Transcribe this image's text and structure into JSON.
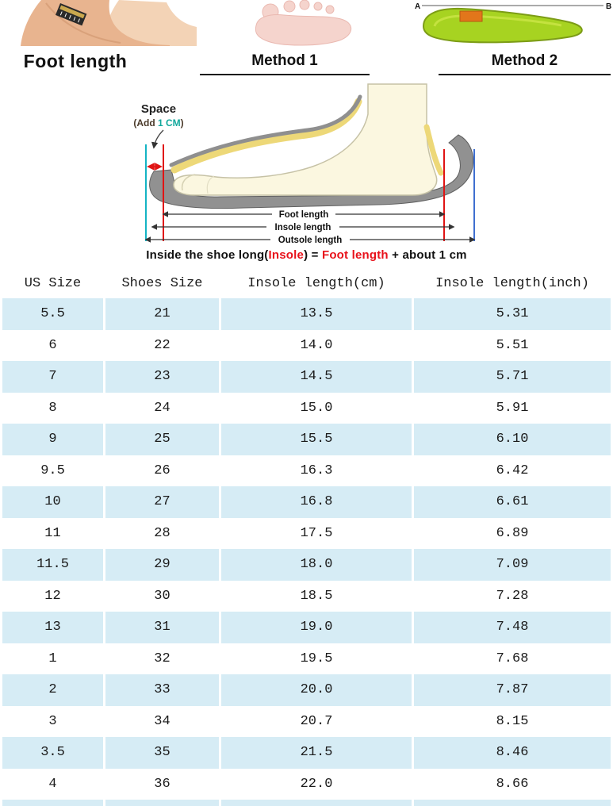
{
  "top_panels": {
    "foot_length_label": "Foot length",
    "method1_label": "Method 1",
    "method2_label": "Method 2",
    "marker_a": "A",
    "marker_b": "B"
  },
  "diagram": {
    "space_label": "Space",
    "add_prefix": "(Add ",
    "add_value": "1 CM",
    "add_suffix": ")",
    "measure_labels": [
      "Foot length",
      "Insole length",
      "Outsole length"
    ],
    "formula": {
      "prefix": "Inside the shoe long(",
      "insole": "Insole",
      "mid": ") = ",
      "foot_length": "Foot length",
      "suffix": " + about 1 cm"
    }
  },
  "size_table": {
    "headers": [
      "US Size",
      "Shoes Size",
      "Insole length(cm)",
      "Insole length(inch)"
    ],
    "rows": [
      [
        "5.5",
        "21",
        "13.5",
        "5.31"
      ],
      [
        "6",
        "22",
        "14.0",
        "5.51"
      ],
      [
        "7",
        "23",
        "14.5",
        "5.71"
      ],
      [
        "8",
        "24",
        "15.0",
        "5.91"
      ],
      [
        "9",
        "25",
        "15.5",
        "6.10"
      ],
      [
        "9.5",
        "26",
        "16.3",
        "6.42"
      ],
      [
        "10",
        "27",
        "16.8",
        "6.61"
      ],
      [
        "11",
        "28",
        "17.5",
        "6.89"
      ],
      [
        "11.5",
        "29",
        "18.0",
        "7.09"
      ],
      [
        "12",
        "30",
        "18.5",
        "7.28"
      ],
      [
        "13",
        "31",
        "19.0",
        "7.48"
      ],
      [
        "1",
        "32",
        "19.5",
        "7.68"
      ],
      [
        "2",
        "33",
        "20.0",
        "7.87"
      ],
      [
        "3",
        "34",
        "20.7",
        "8.15"
      ],
      [
        "3.5",
        "35",
        "21.5",
        "8.46"
      ],
      [
        "4",
        "36",
        "22.0",
        "8.66"
      ]
    ]
  },
  "colors": {
    "row_highlight": "#d6ecf5",
    "accent_red": "#e8111a",
    "accent_teal": "#12a89c",
    "insole_green": "#a7d321"
  }
}
